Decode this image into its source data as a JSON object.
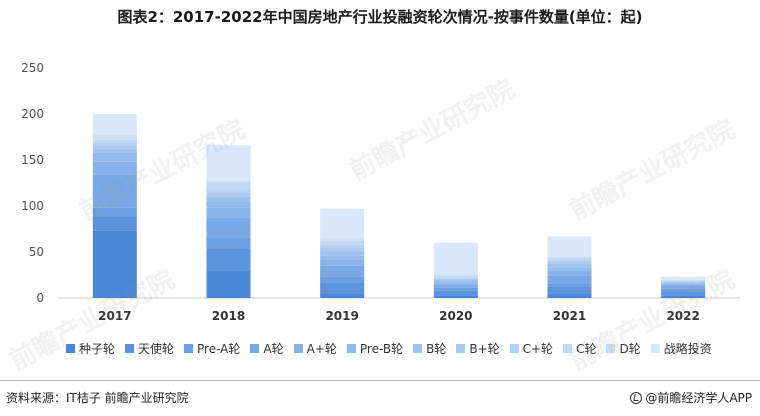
{
  "title": "图表2：2017-2022年中国房地产行业投融资轮次情况-按事件数量(单位：起)",
  "source": "资料来源：IT桔子 前瞻产业研究院",
  "brand": "@前瞻经济学人APP",
  "watermark": "前瞻产业研究院",
  "colors": [
    "#4a86d8",
    "#5b93dd",
    "#6a9ee2",
    "#79a8e6",
    "#86b1e9",
    "#93baed",
    "#9fc2ef",
    "#abc9f1",
    "#b7d1f3",
    "#c2d8f5",
    "#cde0f7",
    "#d8e7fa"
  ],
  "chart_data": {
    "type": "bar",
    "stacked": true,
    "categories": [
      "2017",
      "2018",
      "2019",
      "2020",
      "2021",
      "2022"
    ],
    "ylim": [
      0,
      250
    ],
    "yticks": [
      0,
      50,
      100,
      150,
      200,
      250
    ],
    "grid": false,
    "legend_position": "bottom",
    "series": [
      {
        "name": "种子轮",
        "values": [
          73,
          30,
          5,
          3,
          5,
          3
        ]
      },
      {
        "name": "天使轮",
        "values": [
          16,
          24,
          12,
          5,
          7,
          4
        ]
      },
      {
        "name": "Pre-A轮",
        "values": [
          9,
          12,
          6,
          3,
          4,
          3
        ]
      },
      {
        "name": "A轮",
        "values": [
          36,
          21,
          12,
          3,
          8,
          3
        ]
      },
      {
        "name": "A+轮",
        "values": [
          14,
          11,
          7,
          2,
          6,
          2
        ]
      },
      {
        "name": "Pre-B轮",
        "values": [
          10,
          7,
          4,
          2,
          3,
          1
        ]
      },
      {
        "name": "B轮",
        "values": [
          4,
          5,
          5,
          2,
          4,
          1
        ]
      },
      {
        "name": "B+轮",
        "values": [
          4,
          5,
          4,
          1,
          3,
          1
        ]
      },
      {
        "name": "C+轮",
        "values": [
          3,
          3,
          3,
          1,
          2,
          0
        ]
      },
      {
        "name": "C轮",
        "values": [
          3,
          7,
          4,
          2,
          2,
          1
        ]
      },
      {
        "name": "D轮",
        "values": [
          6,
          3,
          3,
          2,
          1,
          1
        ]
      },
      {
        "name": "战略投资",
        "values": [
          22,
          38,
          32,
          34,
          22,
          3
        ]
      }
    ]
  }
}
